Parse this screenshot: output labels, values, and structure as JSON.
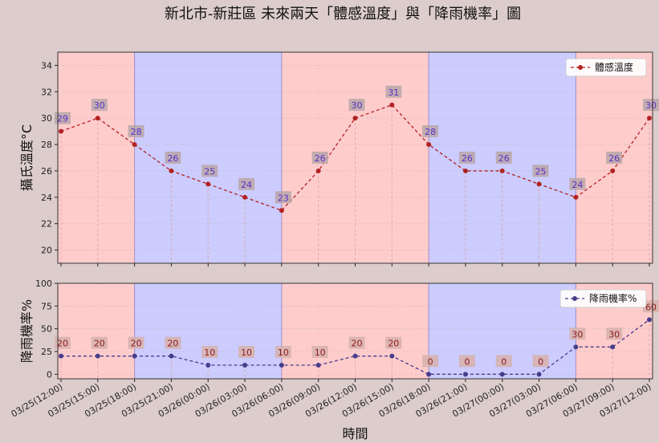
{
  "chart_data": [
    {
      "type": "line",
      "title": "新北市-新莊區 未來兩天「體感溫度」與「降雨機率」圖",
      "ylabel": "攝氏溫度°C",
      "ylim": [
        19,
        35
      ],
      "yticks": [
        20,
        22,
        24,
        26,
        28,
        30,
        32,
        34
      ],
      "categories": [
        "03/25(12:00)",
        "03/25(15:00)",
        "03/25(18:00)",
        "03/25(21:00)",
        "03/26(00:00)",
        "03/26(03:00)",
        "03/26(06:00)",
        "03/26(09:00)",
        "03/26(12:00)",
        "03/26(15:00)",
        "03/26(18:00)",
        "03/26(21:00)",
        "03/27(00:00)",
        "03/27(03:00)",
        "03/27(06:00)",
        "03/27(09:00)",
        "03/27(12:00)"
      ],
      "series": [
        {
          "name": "體感溫度",
          "values": [
            29,
            30,
            28,
            26,
            25,
            24,
            23,
            26,
            30,
            31,
            28,
            26,
            26,
            25,
            24,
            26,
            30
          ],
          "color": "#b22222"
        }
      ],
      "label_color": "#5b2fc9",
      "grid": true,
      "legend": "top-right"
    },
    {
      "type": "line",
      "xlabel": "時間",
      "ylabel": "降雨機率%",
      "ylim": [
        -5,
        100
      ],
      "yticks": [
        0,
        25,
        50,
        75,
        100
      ],
      "categories": [
        "03/25(12:00)",
        "03/25(15:00)",
        "03/25(18:00)",
        "03/25(21:00)",
        "03/26(00:00)",
        "03/26(03:00)",
        "03/26(06:00)",
        "03/26(09:00)",
        "03/26(12:00)",
        "03/26(15:00)",
        "03/26(18:00)",
        "03/26(21:00)",
        "03/27(00:00)",
        "03/27(03:00)",
        "03/27(06:00)",
        "03/27(09:00)",
        "03/27(12:00)"
      ],
      "series": [
        {
          "name": "降雨機率%",
          "values": [
            20,
            20,
            20,
            20,
            10,
            10,
            10,
            10,
            20,
            20,
            0,
            0,
            0,
            0,
            30,
            30,
            60
          ],
          "color": "#483d8b"
        }
      ],
      "label_color": "#8b1a1a",
      "grid": true,
      "legend": "top-right"
    }
  ],
  "background_bands": [
    {
      "from_index": 0,
      "to_index": 2,
      "color": "#ffcccc"
    },
    {
      "from_index": 2,
      "to_index": 6,
      "color": "#ccccff"
    },
    {
      "from_index": 6,
      "to_index": 10,
      "color": "#ffcccc"
    },
    {
      "from_index": 10,
      "to_index": 14,
      "color": "#ccccff"
    },
    {
      "from_index": 14,
      "to_index": 16,
      "color": "#ffcccc"
    }
  ]
}
